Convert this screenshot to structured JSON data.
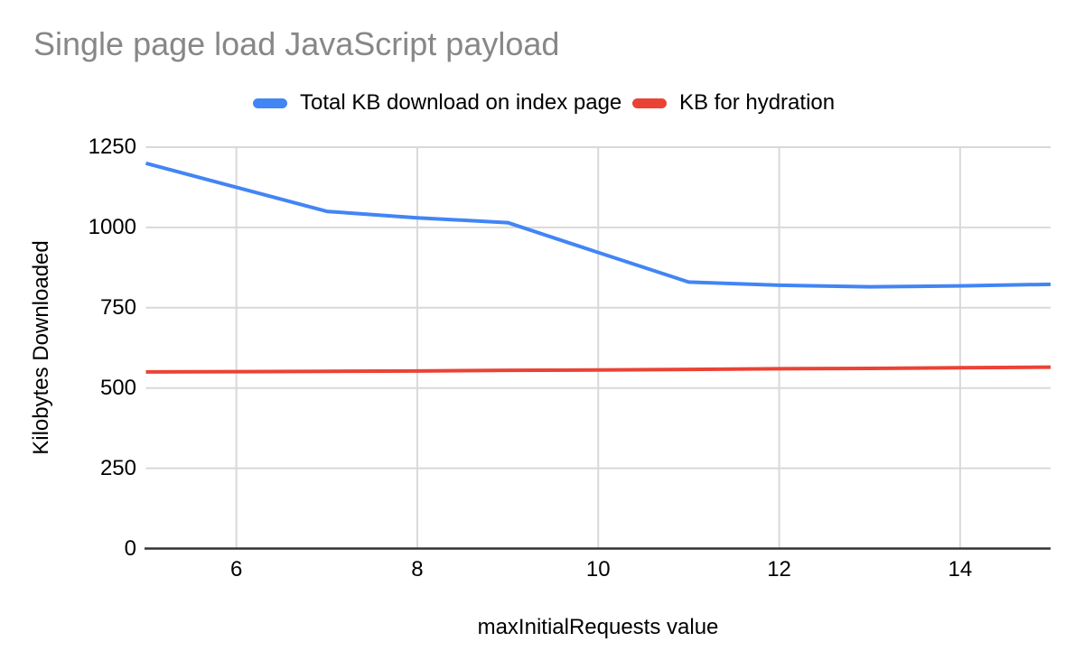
{
  "title": "Single page load JavaScript payload",
  "legend": {
    "items": [
      {
        "label": "Total KB download on index page",
        "color": "#4285f4"
      },
      {
        "label": "KB for hydration",
        "color": "#ea4335"
      }
    ]
  },
  "chart_data": {
    "type": "line",
    "title": "Single page load JavaScript payload",
    "xlabel": "maxInitialRequests value",
    "ylabel": "Kilobytes Downloaded",
    "x": [
      5,
      6,
      7,
      8,
      9,
      10,
      11,
      12,
      13,
      14,
      15
    ],
    "series": [
      {
        "name": "Total KB download on index page",
        "color": "#4285f4",
        "values": [
          1200,
          1125,
          1050,
          1030,
          1015,
          922,
          830,
          820,
          815,
          818,
          823
        ]
      },
      {
        "name": "KB for hydration",
        "color": "#ea4335",
        "values": [
          550,
          551,
          552,
          553,
          555,
          556,
          558,
          560,
          561,
          563,
          565
        ]
      }
    ],
    "xlim": [
      5,
      15
    ],
    "ylim": [
      0,
      1250
    ],
    "x_ticks": [
      6,
      8,
      10,
      12,
      14
    ],
    "y_ticks": [
      0,
      250,
      500,
      750,
      1000,
      1250
    ],
    "grid": true,
    "legend_position": "top",
    "colors": {
      "grid": "#d9d9d9",
      "axis": "#333333",
      "title": "#878787",
      "tick_label": "#000000",
      "background": "#ffffff"
    }
  }
}
